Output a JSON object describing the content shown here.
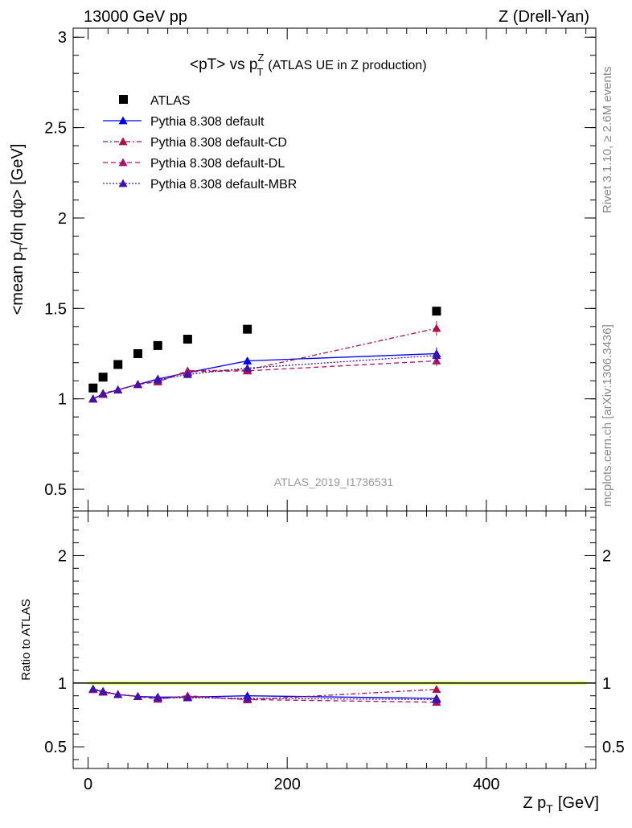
{
  "header": {
    "left": "13000 GeV pp",
    "right": "Z (Drell-Yan)"
  },
  "side_text": {
    "rivet": "Rivet 3.1.10, ≥ 2.6M events",
    "mcplots": "mcplots.cern.ch [arXiv:1306.3436]"
  },
  "chart_data": [
    {
      "type": "scatter",
      "title": "<pT> vs p_T^Z (ATLAS UE in Z production)",
      "title_main": "<pT> vs p",
      "title_sup": "Z",
      "title_sub": "T",
      "title_rest": "(ATLAS UE in Z production)",
      "ylabel": "<mean p_T/dη dφ> [GeV]",
      "ylabel_a": "<mean p",
      "ylabel_sub": "T",
      "ylabel_b": "/dη dφ> [GeV]",
      "watermark": "ATLAS_2019_I1736531",
      "xlim": [
        -15,
        510
      ],
      "ylim": [
        0.38,
        3.05
      ],
      "yticks": [
        0.5,
        1,
        1.5,
        2,
        2.5,
        3
      ],
      "ytick_labels": [
        "0.5",
        "1",
        "1.5",
        "2",
        "2.5",
        "3"
      ],
      "x": [
        5,
        15,
        30,
        50,
        70,
        100,
        160,
        350
      ],
      "series": [
        {
          "name": "ATLAS",
          "color": "#000000",
          "marker": "square",
          "dash": "",
          "values": [
            1.06,
            1.12,
            1.19,
            1.25,
            1.295,
            1.33,
            1.385,
            1.485
          ]
        },
        {
          "name": "Pythia 8.308 default",
          "color": "#0000ee",
          "marker": "triangle",
          "dash": "",
          "values": [
            1.0,
            1.025,
            1.05,
            1.08,
            1.11,
            1.145,
            1.21,
            1.25
          ],
          "err": [
            0.01,
            0.01,
            0.01,
            0.01,
            0.012,
            0.012,
            0.02,
            0.035
          ]
        },
        {
          "name": "Pythia 8.308 default-CD",
          "color": "#aa1144",
          "marker": "triangle",
          "dash": "6,3,2,3",
          "values": [
            1.0,
            1.025,
            1.05,
            1.08,
            1.095,
            1.155,
            1.16,
            1.39
          ],
          "err": [
            0.01,
            0.01,
            0.01,
            0.01,
            0.012,
            0.012,
            0.02,
            0.04
          ]
        },
        {
          "name": "Pythia 8.308 default-DL",
          "color": "#aa1166",
          "marker": "triangle",
          "dash": "6,4",
          "values": [
            1.0,
            1.03,
            1.05,
            1.08,
            1.095,
            1.15,
            1.155,
            1.21
          ],
          "err": [
            0.01,
            0.01,
            0.01,
            0.01,
            0.012,
            0.012,
            0.02,
            0.03
          ]
        },
        {
          "name": "Pythia 8.308 default-MBR",
          "color": "#4411aa",
          "marker": "triangle",
          "dash": "2,2",
          "values": [
            1.0,
            1.03,
            1.05,
            1.08,
            1.105,
            1.135,
            1.17,
            1.24
          ],
          "err": [
            0.01,
            0.01,
            0.01,
            0.01,
            0.012,
            0.012,
            0.02,
            0.035
          ]
        }
      ]
    },
    {
      "type": "scatter",
      "ylabel": "Ratio to ATLAS",
      "xlabel": "Z p_T [GeV]",
      "xlabel_a": "Z p",
      "xlabel_sub": "T",
      "xlabel_b": "[GeV]",
      "xlim": [
        -15,
        510
      ],
      "ylim": [
        0.33,
        2.35
      ],
      "xticks": [
        0,
        200,
        400
      ],
      "xtick_labels": [
        "0",
        "200",
        "400"
      ],
      "yticks": [
        0.5,
        1,
        2
      ],
      "ytick_labels": [
        "0.5",
        "1",
        "2"
      ],
      "x": [
        5,
        15,
        30,
        50,
        70,
        100,
        160,
        350
      ],
      "band": [
        0.985,
        1.015
      ],
      "series": [
        {
          "name": "Pythia 8.308 default",
          "color": "#0000ee",
          "dash": "",
          "values": [
            0.95,
            0.93,
            0.91,
            0.895,
            0.89,
            0.89,
            0.9,
            0.88
          ]
        },
        {
          "name": "Pythia 8.308 default-CD",
          "color": "#aa1144",
          "dash": "6,3,2,3",
          "values": [
            0.95,
            0.93,
            0.91,
            0.895,
            0.875,
            0.9,
            0.87,
            0.95
          ]
        },
        {
          "name": "Pythia 8.308 default-DL",
          "color": "#aa1166",
          "dash": "6,4",
          "values": [
            0.95,
            0.935,
            0.91,
            0.895,
            0.875,
            0.895,
            0.87,
            0.85
          ]
        },
        {
          "name": "Pythia 8.308 default-MBR",
          "color": "#4411aa",
          "dash": "2,2",
          "values": [
            0.955,
            0.935,
            0.91,
            0.895,
            0.885,
            0.885,
            0.88,
            0.87
          ]
        }
      ]
    }
  ]
}
